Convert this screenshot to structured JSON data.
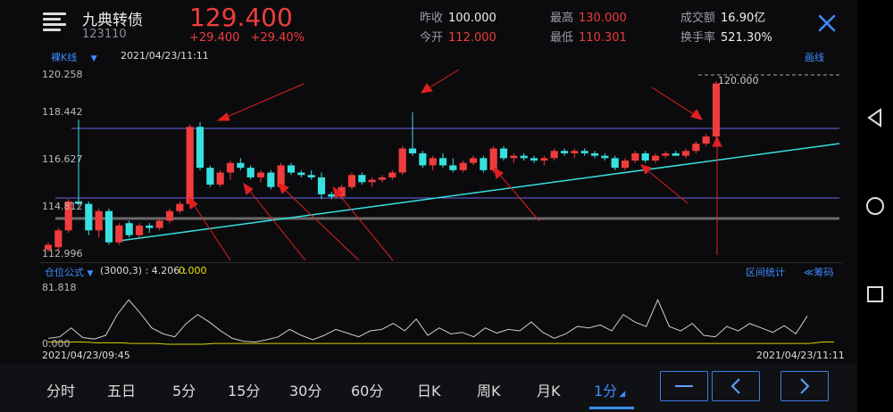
{
  "header": {
    "stock_name": "九典转债",
    "stock_code": "123110",
    "price": "129.400",
    "change": "+29.400",
    "change_pct": "+29.40%",
    "stats": [
      {
        "label": "昨收",
        "value": "100.000",
        "red": false
      },
      {
        "label": "今开",
        "value": "112.000",
        "red": true
      },
      {
        "label": "最高",
        "value": "130.000",
        "red": true
      },
      {
        "label": "最低",
        "value": "110.301",
        "red": true
      },
      {
        "label": "成交额",
        "value": "16.90亿",
        "red": false
      },
      {
        "label": "换手率",
        "value": "521.30%",
        "red": false
      }
    ]
  },
  "subbar": {
    "mode": "裸K线",
    "mode_arrow": "▼",
    "datetime": "2021/04/23/11:11",
    "draw_label": "画线"
  },
  "indicator_bar": {
    "name": "仓位公式",
    "arrow": "▼",
    "params": "(3000,3) : 4.206 :",
    "value": "0.000",
    "range_stat": "区间统计",
    "chip_prefix": "≪",
    "chip": "筹码"
  },
  "chart_data": {
    "type": "candlestick",
    "price_axis_labels": [
      "120.258",
      "118.442",
      "116.627",
      "114.812",
      "112.996"
    ],
    "price_ylim": [
      112.996,
      120.258
    ],
    "last_price_marker": "120.000",
    "indicator_axis_labels": [
      "81.818",
      "0.000"
    ],
    "time_start": "2021/04/23/09:45",
    "time_end": "2021/04/23/11:11",
    "candles": [
      [
        113.0,
        113.3,
        112.9,
        113.2
      ],
      [
        113.1,
        113.9,
        113.0,
        113.8
      ],
      [
        113.8,
        115.1,
        113.7,
        115.0
      ],
      [
        115.0,
        118.4,
        114.8,
        114.9
      ],
      [
        114.9,
        115.0,
        113.6,
        113.8
      ],
      [
        113.8,
        114.7,
        113.5,
        114.6
      ],
      [
        114.6,
        114.7,
        113.2,
        113.3
      ],
      [
        113.3,
        114.1,
        113.2,
        114.0
      ],
      [
        114.1,
        114.2,
        113.5,
        113.6
      ],
      [
        113.6,
        114.1,
        113.5,
        114.0
      ],
      [
        114.0,
        114.1,
        113.7,
        113.9
      ],
      [
        113.9,
        114.3,
        113.8,
        114.2
      ],
      [
        114.2,
        114.7,
        114.1,
        114.6
      ],
      [
        114.6,
        115.0,
        114.5,
        114.9
      ],
      [
        114.9,
        118.2,
        114.8,
        118.1
      ],
      [
        118.1,
        118.3,
        116.3,
        116.4
      ],
      [
        116.4,
        116.5,
        115.6,
        115.7
      ],
      [
        115.7,
        116.3,
        115.6,
        116.2
      ],
      [
        116.2,
        116.7,
        115.9,
        116.6
      ],
      [
        116.6,
        116.8,
        116.3,
        116.4
      ],
      [
        116.4,
        116.5,
        115.9,
        116.0
      ],
      [
        116.0,
        116.3,
        115.8,
        116.2
      ],
      [
        116.2,
        116.3,
        115.5,
        115.6
      ],
      [
        115.6,
        116.6,
        115.5,
        116.5
      ],
      [
        116.5,
        116.6,
        116.1,
        116.2
      ],
      [
        116.2,
        116.3,
        116.0,
        116.1
      ],
      [
        116.1,
        116.3,
        115.9,
        116.0
      ],
      [
        116.0,
        116.2,
        115.1,
        115.3
      ],
      [
        115.3,
        115.4,
        115.1,
        115.2
      ],
      [
        115.2,
        115.7,
        115.1,
        115.6
      ],
      [
        115.6,
        116.2,
        115.5,
        116.1
      ],
      [
        116.1,
        116.2,
        115.7,
        115.8
      ],
      [
        115.8,
        116.0,
        115.6,
        115.9
      ],
      [
        115.9,
        116.1,
        115.8,
        116.0
      ],
      [
        116.0,
        116.3,
        115.9,
        116.2
      ],
      [
        116.2,
        117.3,
        116.1,
        117.2
      ],
      [
        117.2,
        118.7,
        116.9,
        117.0
      ],
      [
        117.0,
        117.1,
        116.4,
        116.5
      ],
      [
        116.5,
        116.9,
        116.3,
        116.8
      ],
      [
        116.8,
        117.0,
        116.4,
        116.5
      ],
      [
        116.5,
        116.8,
        116.2,
        116.3
      ],
      [
        116.3,
        116.7,
        116.2,
        116.6
      ],
      [
        116.6,
        116.9,
        116.5,
        116.8
      ],
      [
        116.8,
        116.9,
        116.2,
        116.3
      ],
      [
        116.3,
        117.3,
        116.2,
        117.2
      ],
      [
        117.2,
        117.3,
        116.7,
        116.8
      ],
      [
        116.8,
        117.0,
        116.6,
        116.9
      ],
      [
        116.9,
        117.0,
        116.7,
        116.8
      ],
      [
        116.8,
        116.9,
        116.6,
        116.7
      ],
      [
        116.7,
        116.9,
        116.5,
        116.8
      ],
      [
        116.8,
        117.2,
        116.7,
        117.1
      ],
      [
        117.1,
        117.2,
        116.9,
        117.0
      ],
      [
        117.0,
        117.2,
        116.8,
        117.1
      ],
      [
        117.1,
        117.2,
        116.9,
        117.0
      ],
      [
        117.0,
        117.1,
        116.8,
        116.9
      ],
      [
        116.9,
        117.0,
        116.7,
        116.8
      ],
      [
        116.8,
        116.9,
        116.3,
        116.4
      ],
      [
        116.4,
        116.8,
        116.3,
        116.7
      ],
      [
        116.7,
        117.1,
        116.6,
        117.0
      ],
      [
        117.0,
        117.1,
        116.6,
        116.7
      ],
      [
        116.7,
        117.0,
        116.6,
        116.9
      ],
      [
        116.9,
        117.1,
        116.8,
        117.0
      ],
      [
        117.0,
        117.1,
        116.9,
        116.9
      ],
      [
        116.9,
        117.2,
        116.8,
        117.1
      ],
      [
        117.1,
        117.5,
        117.0,
        117.4
      ],
      [
        117.4,
        117.8,
        117.3,
        117.7
      ],
      [
        117.7,
        120.0,
        117.6,
        119.9
      ]
    ],
    "indicator": [
      8,
      10,
      22,
      9,
      7,
      12,
      40,
      60,
      42,
      22,
      14,
      10,
      28,
      40,
      30,
      18,
      8,
      4,
      3,
      6,
      10,
      20,
      12,
      6,
      12,
      20,
      15,
      10,
      18,
      20,
      28,
      18,
      34,
      12,
      22,
      14,
      16,
      10,
      22,
      15,
      20,
      18,
      30,
      16,
      8,
      14,
      24,
      22,
      26,
      18,
      40,
      30,
      24,
      60,
      24,
      18,
      28,
      12,
      10,
      24,
      18,
      28,
      22,
      16,
      25,
      14,
      38
    ],
    "baseline_series": [
      3,
      3,
      3,
      3,
      2,
      2,
      2,
      1,
      1,
      1,
      0,
      0,
      0,
      0,
      1,
      1,
      1,
      1,
      1,
      1,
      1,
      1,
      1,
      1,
      1,
      1,
      1,
      1,
      1,
      1,
      1,
      1,
      1,
      1,
      1,
      1,
      1,
      1,
      1,
      1,
      1,
      1,
      1,
      1,
      1,
      1,
      1,
      1,
      1,
      1,
      1,
      1,
      1,
      1,
      1,
      1,
      1,
      1,
      1,
      1,
      1,
      1,
      1,
      1,
      1,
      3,
      3
    ]
  },
  "tabs": [
    {
      "label": "分时",
      "active": false
    },
    {
      "label": "五日",
      "active": false
    },
    {
      "label": "5分",
      "active": false
    },
    {
      "label": "15分",
      "active": false
    },
    {
      "label": "30分",
      "active": false
    },
    {
      "label": "60分",
      "active": false
    },
    {
      "label": "日K",
      "active": false
    },
    {
      "label": "周K",
      "active": false
    },
    {
      "label": "月K",
      "active": false
    },
    {
      "label": "1分",
      "active": true
    }
  ],
  "tab_arrow": "◢",
  "colors": {
    "up": "#f03c3c",
    "down": "#38e0e0",
    "accent": "#3d8cff",
    "bg": "#0b0b0d"
  }
}
